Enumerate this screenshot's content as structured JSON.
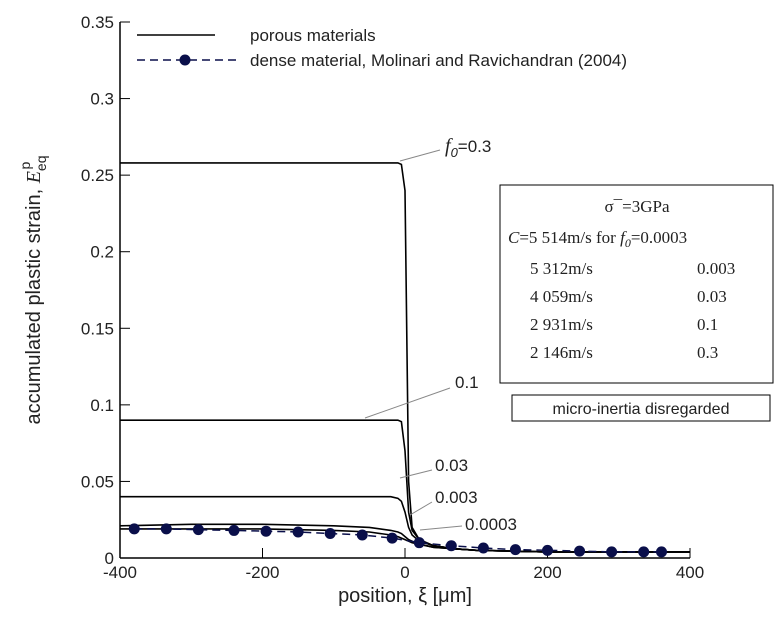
{
  "chart_data": {
    "type": "line",
    "x_label": "position, ξ [μm]",
    "y_label": {
      "text": "accumulated plastic strain, ",
      "symbol": "E",
      "subscript": "eq",
      "superscript": "p"
    },
    "xlim": [
      -400,
      400
    ],
    "xticks": [
      -400,
      -200,
      0,
      200,
      400
    ],
    "ylim": [
      0,
      0.35
    ],
    "yticks": [
      0,
      0.05,
      0.1,
      0.15,
      0.2,
      0.25,
      0.3,
      0.35
    ],
    "legend": [
      {
        "label": "porous materials",
        "style": "solid"
      },
      {
        "label": "dense material, Molinari and Ravichandran (2004)",
        "style": "dashed-marker"
      }
    ],
    "f_symbol": "f",
    "f_subscript": "0",
    "x": [
      -400,
      -300,
      -200,
      -100,
      -50,
      -20,
      -10,
      -5,
      0,
      5,
      10,
      20,
      40,
      70,
      100,
      200,
      300,
      400
    ],
    "series": [
      {
        "label": "=0.3",
        "color": "#000000",
        "values": [
          0.258,
          0.258,
          0.258,
          0.258,
          0.258,
          0.258,
          0.258,
          0.257,
          0.24,
          0.05,
          0.02,
          0.012,
          0.008,
          0.006,
          0.005,
          0.004,
          0.004,
          0.004
        ]
      },
      {
        "label": "0.1",
        "color": "#000000",
        "values": [
          0.09,
          0.09,
          0.09,
          0.09,
          0.09,
          0.09,
          0.09,
          0.089,
          0.07,
          0.03,
          0.018,
          0.012,
          0.008,
          0.006,
          0.005,
          0.004,
          0.004,
          0.004
        ]
      },
      {
        "label": "0.03",
        "color": "#000000",
        "values": [
          0.04,
          0.04,
          0.04,
          0.04,
          0.04,
          0.04,
          0.039,
          0.037,
          0.03,
          0.02,
          0.015,
          0.011,
          0.008,
          0.006,
          0.005,
          0.004,
          0.004,
          0.004
        ]
      },
      {
        "label": "0.003",
        "color": "#000000",
        "values": [
          0.021,
          0.022,
          0.022,
          0.021,
          0.02,
          0.018,
          0.017,
          0.016,
          0.014,
          0.012,
          0.011,
          0.009,
          0.007,
          0.006,
          0.005,
          0.004,
          0.004,
          0.004
        ]
      },
      {
        "label": "0.0003",
        "color": "#000000",
        "values": [
          0.019,
          0.019,
          0.019,
          0.018,
          0.017,
          0.015,
          0.014,
          0.013,
          0.012,
          0.011,
          0.01,
          0.009,
          0.007,
          0.006,
          0.005,
          0.004,
          0.004,
          0.004
        ]
      }
    ],
    "dense": {
      "color": "#0a0f4a",
      "x": [
        -380,
        -335,
        -290,
        -240,
        -195,
        -150,
        -105,
        -60,
        -18,
        20,
        65,
        110,
        155,
        200,
        245,
        290,
        335,
        360
      ],
      "values": [
        0.019,
        0.019,
        0.0185,
        0.018,
        0.0175,
        0.017,
        0.016,
        0.015,
        0.013,
        0.01,
        0.008,
        0.0065,
        0.0055,
        0.005,
        0.0045,
        0.004,
        0.004,
        0.004
      ]
    },
    "box": {
      "title": "σ¯=3GPa",
      "first_symbol": "C",
      "first_speed": "=5 514m/s for ",
      "first_value": "=0.0003",
      "rows": [
        [
          "5 312m/s",
          "0.003"
        ],
        [
          "4 059m/s",
          "0.03"
        ],
        [
          "2 931m/s",
          "0.1"
        ],
        [
          "2 146m/s",
          "0.3"
        ]
      ]
    },
    "note": "micro-inertia disregarded"
  }
}
